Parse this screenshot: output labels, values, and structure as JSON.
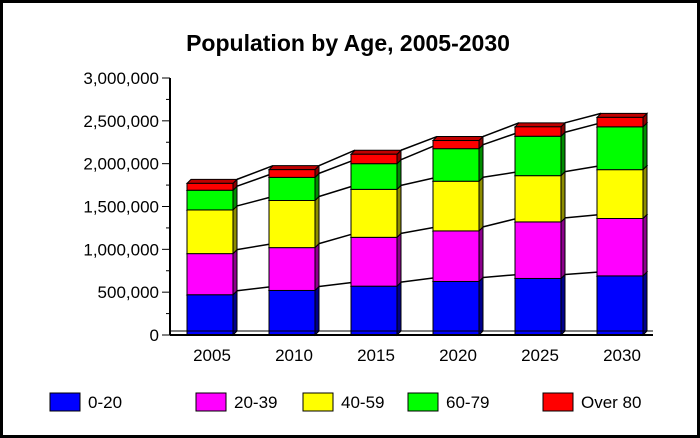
{
  "chart_data": {
    "type": "bar",
    "stacked": true,
    "style": "3d",
    "title": "Population by Age, 2005-2030",
    "xlabel": "",
    "ylabel": "",
    "categories": [
      "2005",
      "2010",
      "2015",
      "2020",
      "2025",
      "2030"
    ],
    "ylim": [
      0,
      3000000
    ],
    "yticks": [
      "0",
      "500,000",
      "1,000,000",
      "1,500,000",
      "2,000,000",
      "2,500,000",
      "3,000,000"
    ],
    "grid": false,
    "legend": "bottom",
    "series": [
      {
        "name": "0-20",
        "color": "#0000ff",
        "values": [
          470000,
          520000,
          570000,
          625000,
          660000,
          690000
        ]
      },
      {
        "name": "20-39",
        "color": "#ff00ff",
        "values": [
          480000,
          500000,
          570000,
          590000,
          660000,
          670000
        ]
      },
      {
        "name": "40-59",
        "color": "#ffff00",
        "values": [
          510000,
          550000,
          560000,
          580000,
          540000,
          570000
        ]
      },
      {
        "name": "60-79",
        "color": "#00ff00",
        "values": [
          230000,
          270000,
          300000,
          380000,
          460000,
          500000
        ]
      },
      {
        "name": "Over 80",
        "color": "#ff0000",
        "values": [
          80000,
          90000,
          110000,
          95000,
          110000,
          110000
        ]
      }
    ]
  }
}
